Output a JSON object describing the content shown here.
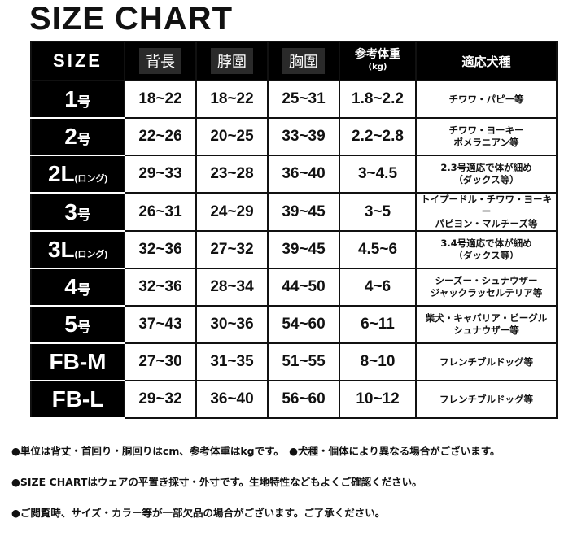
{
  "title": "SIZE CHART",
  "headers": {
    "size": "SIZE",
    "back": "背長",
    "neck": "脖圍",
    "chest": "胸圍",
    "weight": "参考体重",
    "weight_unit": "(kg)",
    "breed": "適応犬種"
  },
  "rows": [
    {
      "size": "1",
      "suffix": "号",
      "back": "18~22",
      "neck": "18~22",
      "chest": "25~31",
      "weight": "1.8~2.2",
      "breed1": "チワワ・パピー等",
      "breed2": ""
    },
    {
      "size": "2",
      "suffix": "号",
      "back": "22~26",
      "neck": "20~25",
      "chest": "33~39",
      "weight": "2.2~2.8",
      "breed1": "チワワ・ヨーキー",
      "breed2": "ポメラニアン等"
    },
    {
      "size": "2L",
      "suffix": "(ロング)",
      "back": "29~33",
      "neck": "23~28",
      "chest": "36~40",
      "weight": "3~4.5",
      "breed1": "2.3号適応で体が細め",
      "breed2": "（ダックス等）"
    },
    {
      "size": "3",
      "suffix": "号",
      "back": "26~31",
      "neck": "24~29",
      "chest": "39~45",
      "weight": "3~5",
      "breed1": "トイプードル・チワワ・ヨーキー",
      "breed2": "パピヨン・マルチーズ等"
    },
    {
      "size": "3L",
      "suffix": "(ロング)",
      "back": "32~36",
      "neck": "27~32",
      "chest": "39~45",
      "weight": "4.5~6",
      "breed1": "3.4号適応で体が細め",
      "breed2": "（ダックス等）"
    },
    {
      "size": "4",
      "suffix": "号",
      "back": "32~36",
      "neck": "28~34",
      "chest": "44~50",
      "weight": "4~6",
      "breed1": "シーズー・シュナウザー",
      "breed2": "ジャックラッセルテリア等"
    },
    {
      "size": "5",
      "suffix": "号",
      "back": "37~43",
      "neck": "30~36",
      "chest": "54~60",
      "weight": "6~11",
      "breed1": "柴犬・キャバリア・ビーグル",
      "breed2": "シュナウザー等"
    },
    {
      "size": "FB-M",
      "suffix": "",
      "back": "27~30",
      "neck": "31~35",
      "chest": "51~55",
      "weight": "8~10",
      "breed1": "フレンチブルドッグ等",
      "breed2": ""
    },
    {
      "size": "FB-L",
      "suffix": "",
      "back": "29~32",
      "neck": "36~40",
      "chest": "56~60",
      "weight": "10~12",
      "breed1": "フレンチブルドッグ等",
      "breed2": ""
    }
  ],
  "notes": [
    "●単位は背丈・首回り・胴回りはcm、参考体重はkgです。　●犬種・個体により異なる場合がございます。",
    "●SIZE CHARTはウェアの平置き採寸・外寸です。生地特性などもよくご確認ください。",
    "●ご閲覧時、サイズ・カラー等が一部欠品の場合がございます。ご了承ください。"
  ]
}
